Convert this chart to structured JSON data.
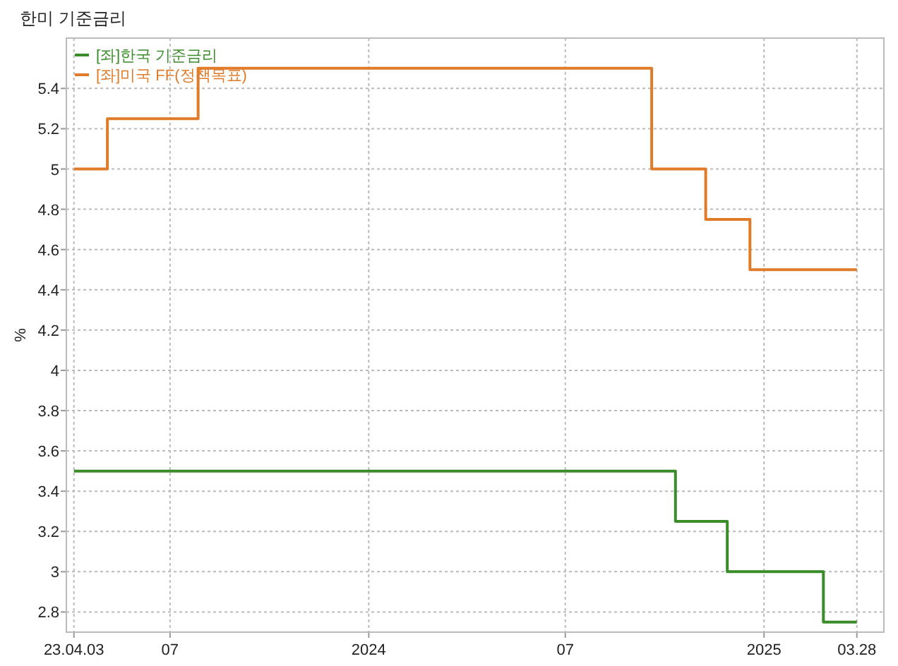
{
  "chart_data": {
    "type": "step",
    "title": "한미 기준금리",
    "ylabel": "%",
    "xlim": [
      "2023-03-27",
      "2025-04-22"
    ],
    "xticks": [
      {
        "value": "2023-04-03",
        "label": "23.04.03"
      },
      {
        "value": "2023-07-01",
        "label": "07"
      },
      {
        "value": "2024-01-01",
        "label": "2024"
      },
      {
        "value": "2024-07-01",
        "label": "07"
      },
      {
        "value": "2025-01-01",
        "label": "2025"
      },
      {
        "value": "2025-03-28",
        "label": "03.28"
      }
    ],
    "ylim": [
      2.7,
      5.65
    ],
    "yticks": [
      2.8,
      3,
      3.2,
      3.4,
      3.6,
      3.8,
      4,
      4.2,
      4.4,
      4.6,
      4.8,
      5,
      5.2,
      5.4
    ],
    "grid": true,
    "legend": "top left",
    "line_style": "solid",
    "series": [
      {
        "name": "[좌]한국 기준금리",
        "color": "#3a8c2a",
        "x": [
          "2023-04-03",
          "2024-10-11",
          "2024-11-28",
          "2025-02-25",
          "2025-03-28"
        ],
        "values": [
          3.5,
          3.25,
          3,
          2.75,
          2.75
        ]
      },
      {
        "name": "[좌]미국 FF(정책목표)",
        "color": "#e07b2a",
        "x": [
          "2023-04-03",
          "2023-05-04",
          "2023-07-27",
          "2024-09-19",
          "2024-11-08",
          "2024-12-19",
          "2025-03-28"
        ],
        "values": [
          5,
          5.25,
          5.5,
          5,
          4.75,
          4.5,
          4.5
        ]
      }
    ]
  }
}
